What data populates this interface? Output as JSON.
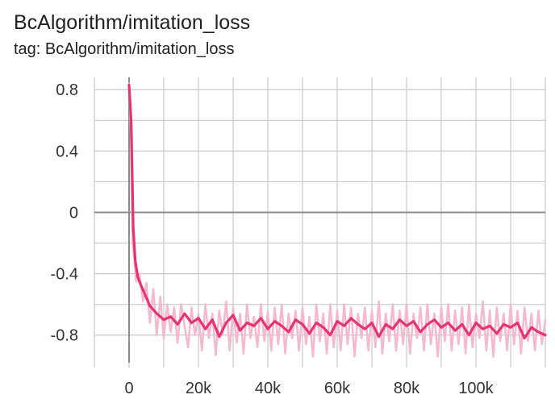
{
  "card": {
    "title": "BcAlgorithm/imitation_loss",
    "tag": "tag: BcAlgorithm/imitation_loss"
  },
  "colors": {
    "smoothed": "#e8336f",
    "raw": "#f6b8cc",
    "grid": "#c8c8c8",
    "axis_zero": "#8c8c8c",
    "text": "#212121"
  },
  "chart_data": {
    "type": "line",
    "title": "BcAlgorithm/imitation_loss",
    "xlabel": "",
    "ylabel": "",
    "xlim": [
      -10000,
      120000
    ],
    "ylim": [
      -0.98,
      0.88
    ],
    "x_ticks": [
      0,
      20000,
      40000,
      60000,
      80000,
      100000
    ],
    "x_tick_labels": [
      "0",
      "20k",
      "40k",
      "60k",
      "80k",
      "100k"
    ],
    "y_ticks": [
      0.8,
      0.4,
      0,
      -0.4,
      -0.8
    ],
    "y_tick_labels": [
      "0.8",
      "0.4",
      "0",
      "-0.4",
      "-0.8"
    ],
    "grid": true,
    "legend": "none",
    "series": [
      {
        "name": "smoothed",
        "x": [
          0,
          600,
          1200,
          1800,
          2500,
          3500,
          4500,
          6000,
          8000,
          10000,
          12000,
          14000,
          16000,
          18000,
          20000,
          22000,
          24000,
          26000,
          28000,
          30000,
          32000,
          34000,
          36000,
          38000,
          40000,
          42000,
          44000,
          46000,
          48000,
          50000,
          52000,
          54000,
          56000,
          58000,
          60000,
          62000,
          64000,
          66000,
          68000,
          70000,
          72000,
          74000,
          76000,
          78000,
          80000,
          82000,
          84000,
          86000,
          88000,
          90000,
          92000,
          94000,
          96000,
          98000,
          100000,
          102000,
          104000,
          106000,
          108000,
          110000,
          112000,
          114000,
          116000,
          118000,
          120000
        ],
        "values": [
          0.83,
          0.6,
          -0.1,
          -0.32,
          -0.42,
          -0.48,
          -0.53,
          -0.61,
          -0.66,
          -0.7,
          -0.68,
          -0.73,
          -0.66,
          -0.72,
          -0.69,
          -0.76,
          -0.7,
          -0.81,
          -0.72,
          -0.67,
          -0.77,
          -0.72,
          -0.74,
          -0.69,
          -0.76,
          -0.71,
          -0.74,
          -0.78,
          -0.7,
          -0.73,
          -0.79,
          -0.72,
          -0.75,
          -0.8,
          -0.71,
          -0.74,
          -0.69,
          -0.73,
          -0.76,
          -0.72,
          -0.81,
          -0.73,
          -0.76,
          -0.7,
          -0.74,
          -0.71,
          -0.78,
          -0.73,
          -0.7,
          -0.75,
          -0.72,
          -0.77,
          -0.73,
          -0.8,
          -0.72,
          -0.76,
          -0.74,
          -0.79,
          -0.73,
          -0.75,
          -0.72,
          -0.82,
          -0.75,
          -0.78,
          -0.8
        ]
      },
      {
        "name": "raw",
        "x": [
          0,
          500,
          1000,
          1500,
          2000,
          3000,
          4000,
          5000,
          6000,
          7000,
          8000,
          9000,
          10000,
          11000,
          12000,
          13000,
          14000,
          15000,
          16000,
          17000,
          18000,
          19000,
          20000,
          21000,
          22000,
          23000,
          24000,
          25000,
          26000,
          27000,
          28000,
          29000,
          30000,
          31000,
          32000,
          33000,
          34000,
          35000,
          36000,
          37000,
          38000,
          39000,
          40000,
          41000,
          42000,
          43000,
          44000,
          45000,
          46000,
          47000,
          48000,
          49000,
          50000,
          51000,
          52000,
          53000,
          54000,
          55000,
          56000,
          57000,
          58000,
          59000,
          60000,
          61000,
          62000,
          63000,
          64000,
          65000,
          66000,
          67000,
          68000,
          69000,
          70000,
          71000,
          72000,
          73000,
          74000,
          75000,
          76000,
          77000,
          78000,
          79000,
          80000,
          81000,
          82000,
          83000,
          84000,
          85000,
          86000,
          87000,
          88000,
          89000,
          90000,
          91000,
          92000,
          93000,
          94000,
          95000,
          96000,
          97000,
          98000,
          99000,
          100000,
          101000,
          102000,
          103000,
          104000,
          105000,
          106000,
          107000,
          108000,
          109000,
          110000,
          111000,
          112000,
          113000,
          114000,
          115000,
          116000,
          117000,
          118000,
          119000,
          120000
        ],
        "values": [
          0.84,
          0.55,
          -0.2,
          -0.3,
          -0.45,
          -0.4,
          -0.58,
          -0.46,
          -0.72,
          -0.5,
          -0.8,
          -0.55,
          -0.82,
          -0.6,
          -0.78,
          -0.62,
          -0.85,
          -0.6,
          -0.74,
          -0.88,
          -0.62,
          -0.8,
          -0.66,
          -0.9,
          -0.6,
          -0.82,
          -0.66,
          -0.93,
          -0.64,
          -0.8,
          -0.58,
          -0.9,
          -0.62,
          -0.85,
          -0.66,
          -0.92,
          -0.6,
          -0.82,
          -0.68,
          -0.88,
          -0.6,
          -0.84,
          -0.65,
          -0.9,
          -0.62,
          -0.86,
          -0.6,
          -0.92,
          -0.66,
          -0.82,
          -0.64,
          -0.9,
          -0.62,
          -0.86,
          -0.68,
          -0.94,
          -0.6,
          -0.84,
          -0.66,
          -0.92,
          -0.6,
          -0.88,
          -0.64,
          -0.9,
          -0.6,
          -0.86,
          -0.62,
          -0.94,
          -0.66,
          -0.82,
          -0.62,
          -0.9,
          -0.64,
          -0.88,
          -0.58,
          -0.92,
          -0.66,
          -0.84,
          -0.6,
          -0.9,
          -0.64,
          -0.86,
          -0.6,
          -0.92,
          -0.66,
          -0.82,
          -0.62,
          -0.9,
          -0.6,
          -0.86,
          -0.66,
          -0.94,
          -0.62,
          -0.84,
          -0.6,
          -0.9,
          -0.64,
          -0.86,
          -0.62,
          -0.92,
          -0.6,
          -0.88,
          -0.66,
          -0.82,
          -0.58,
          -0.9,
          -0.64,
          -0.94,
          -0.62,
          -0.84,
          -0.66,
          -0.9,
          -0.6,
          -0.86,
          -0.64,
          -0.92,
          -0.62,
          -0.84,
          -0.66,
          -0.9,
          -0.64,
          -0.86,
          -0.7
        ]
      }
    ]
  }
}
